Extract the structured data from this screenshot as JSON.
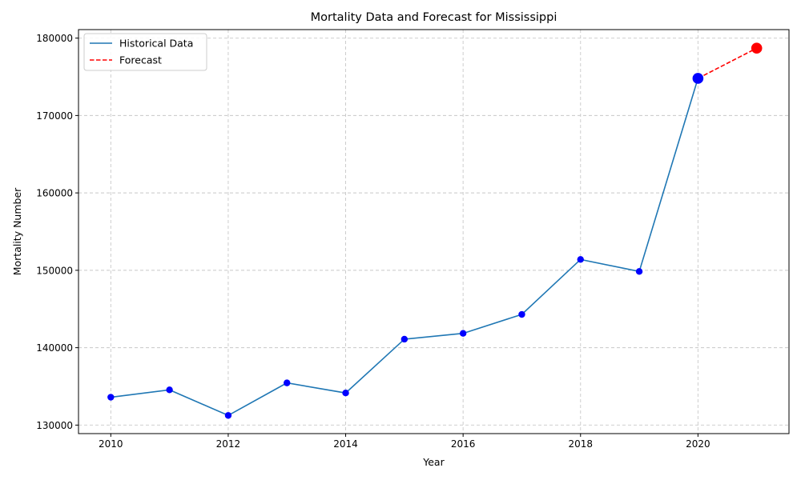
{
  "chart_data": {
    "type": "line",
    "title": "Mortality Data and Forecast for Mississippi",
    "xlabel": "Year",
    "ylabel": "Mortality Number",
    "xlim": [
      2009.45,
      2021.55
    ],
    "ylim": [
      128900,
      181100
    ],
    "xticks": [
      2010,
      2012,
      2014,
      2016,
      2018,
      2020
    ],
    "yticks": [
      130000,
      140000,
      150000,
      160000,
      170000,
      180000
    ],
    "grid": true,
    "legend_position": "top-left",
    "series": [
      {
        "name": "Historical Data",
        "style": "solid",
        "color": "#1f77b4",
        "marker_color": "#0000ff",
        "x": [
          2010,
          2011,
          2012,
          2013,
          2014,
          2015,
          2016,
          2017,
          2018,
          2019,
          2020
        ],
        "y": [
          133600,
          134550,
          131250,
          135450,
          134150,
          141100,
          141850,
          144300,
          151400,
          149850,
          174800
        ]
      },
      {
        "name": "Forecast",
        "style": "dashed",
        "color": "#ff0000",
        "marker_color": "#ff0000",
        "x": [
          2020,
          2021
        ],
        "y": [
          174800,
          178700
        ]
      }
    ],
    "highlighted_points": [
      {
        "x": 2020,
        "y": 174800,
        "color": "#0000ff"
      },
      {
        "x": 2021,
        "y": 178700,
        "color": "#ff0000"
      }
    ]
  }
}
